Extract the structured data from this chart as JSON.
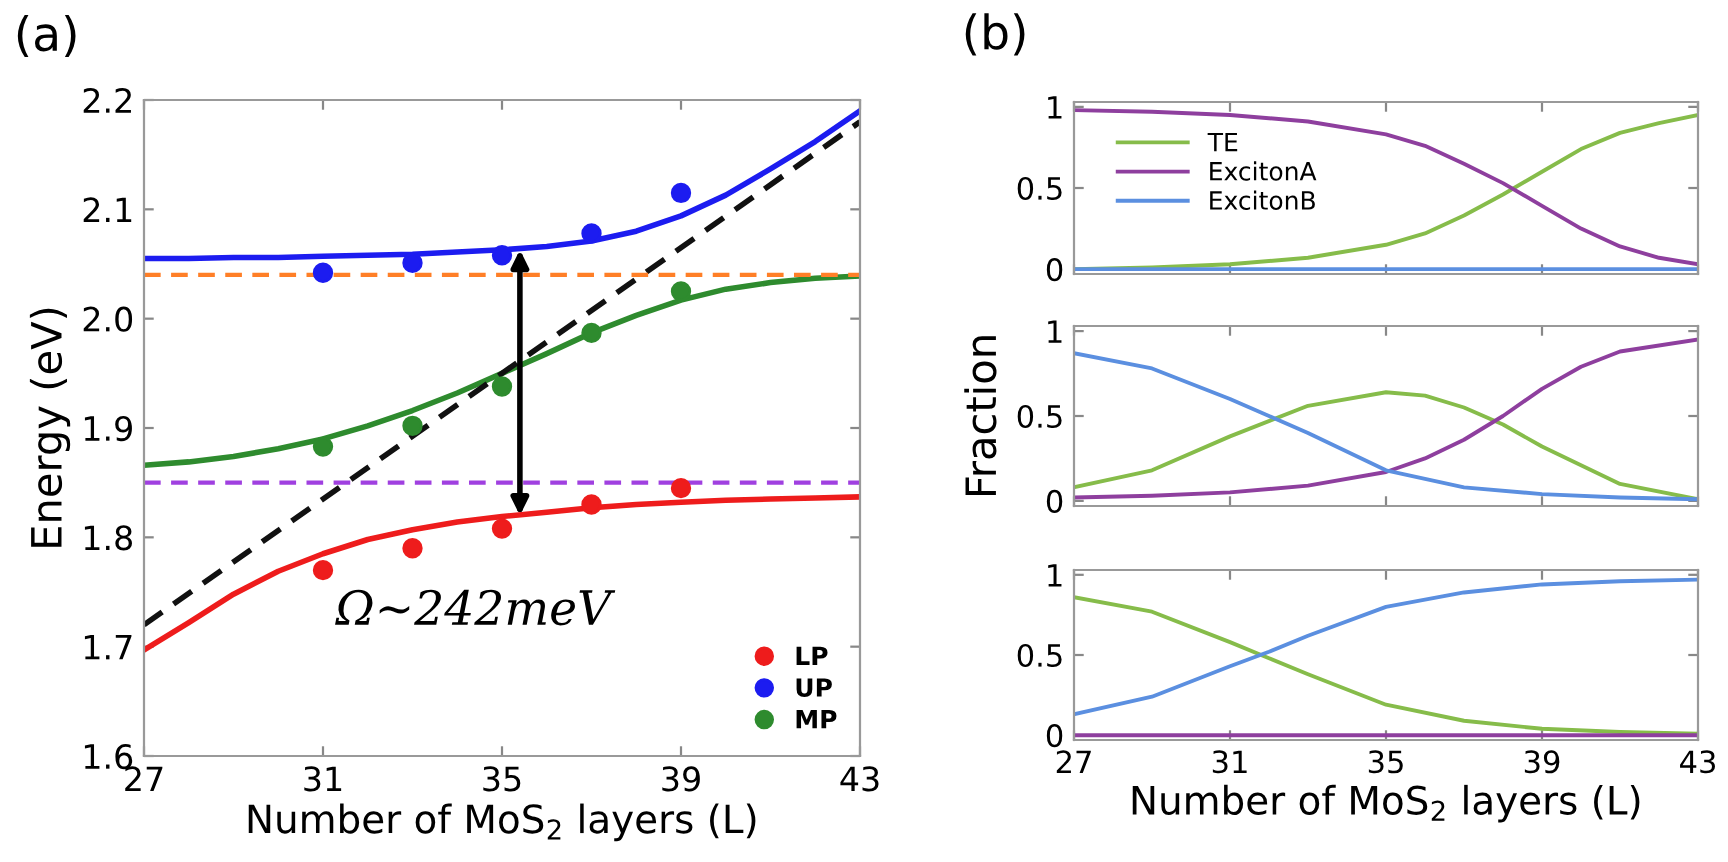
{
  "chart_data": [
    {
      "type": "line",
      "title": "(a)",
      "xlabel": "Number of MoS$_{2}$ layers (L)",
      "ylabel": "Energy (eV)",
      "xlim": [
        27,
        43
      ],
      "xticks": [
        27,
        31,
        35,
        39,
        43
      ],
      "ylim": [
        1.6,
        2.2
      ],
      "yticks": [
        {
          "value": 1.6,
          "label": "1.6"
        },
        {
          "value": 1.7,
          "label": "1.7"
        },
        {
          "value": 1.8,
          "label": "1.8"
        },
        {
          "value": 1.9,
          "label": "1.9"
        },
        {
          "value": 2.0,
          "label": "2.0"
        },
        {
          "value": 2.1,
          "label": "2.1"
        },
        {
          "value": 2.2,
          "label": "2.2"
        }
      ],
      "grid": false,
      "legend": "bottom right",
      "series": [
        {
          "type": "line",
          "color": "#1c1cf0",
          "x": [
            27,
            28,
            29,
            30,
            31,
            32,
            33,
            34,
            35,
            36,
            37,
            38,
            39,
            40,
            41,
            42,
            43
          ],
          "values": [
            2.055,
            2.055,
            2.056,
            2.056,
            2.057,
            2.058,
            2.059,
            2.061,
            2.063,
            2.066,
            2.071,
            2.08,
            2.094,
            2.113,
            2.137,
            2.162,
            2.19
          ]
        },
        {
          "type": "line",
          "color": "#2e8b2e",
          "x": [
            27,
            28,
            29,
            30,
            31,
            32,
            33,
            34,
            35,
            36,
            37,
            38,
            39,
            40,
            41,
            42,
            43
          ],
          "values": [
            1.866,
            1.869,
            1.874,
            1.881,
            1.89,
            1.902,
            1.916,
            1.932,
            1.95,
            1.968,
            1.987,
            2.003,
            2.017,
            2.027,
            2.033,
            2.037,
            2.039
          ]
        },
        {
          "type": "line",
          "color": "#ee1c1c",
          "x": [
            27,
            28,
            29,
            30,
            31,
            32,
            33,
            34,
            35,
            36,
            37,
            38,
            39,
            40,
            41,
            42,
            43
          ],
          "values": [
            1.697,
            1.722,
            1.748,
            1.769,
            1.785,
            1.798,
            1.807,
            1.814,
            1.819,
            1.823,
            1.827,
            1.83,
            1.832,
            1.834,
            1.835,
            1.836,
            1.837
          ]
        },
        {
          "type": "line",
          "color": "#111111",
          "line_style": "dashed",
          "x": [
            27,
            43
          ],
          "values": [
            1.72,
            2.18
          ]
        },
        {
          "type": "scatter",
          "name": "LP",
          "color": "#ee1c1c",
          "marker": "circle",
          "x": [
            31,
            33,
            35,
            37,
            39
          ],
          "values": [
            1.77,
            1.79,
            1.808,
            1.83,
            1.845
          ]
        },
        {
          "type": "scatter",
          "name": "UP",
          "color": "#1c1cf0",
          "marker": "circle",
          "x": [
            31,
            33,
            35,
            37,
            39
          ],
          "values": [
            2.042,
            2.051,
            2.058,
            2.078,
            2.115
          ]
        },
        {
          "type": "scatter",
          "name": "MP",
          "color": "#2e8b2e",
          "marker": "circle",
          "x": [
            31,
            33,
            35,
            37,
            39
          ],
          "values": [
            1.883,
            1.902,
            1.938,
            1.987,
            2.025
          ]
        }
      ],
      "ref_lines": [
        {
          "axis": "y",
          "value": 2.04,
          "color": "#ff7f27",
          "line_style": "dashed"
        },
        {
          "axis": "y",
          "value": 1.85,
          "color": "#a040e0",
          "line_style": "dashed"
        }
      ],
      "annotations": [
        "Ω~242meV"
      ]
    },
    {
      "type": "line",
      "title": "(b)",
      "xlim": [
        27,
        43
      ],
      "xticks": [
        27,
        31,
        35,
        39,
        43
      ],
      "ylim": [
        -0.03,
        1.03
      ],
      "yticks": [
        0,
        0.5,
        1
      ],
      "tick_labels": "y",
      "grid": false,
      "legend": "top left",
      "series": [
        {
          "name": "TE",
          "color": "#86bc4a",
          "x": [
            27,
            29,
            31,
            33,
            35,
            36,
            37,
            38,
            39,
            40,
            41,
            42,
            43
          ],
          "values": [
            0.0,
            0.01,
            0.03,
            0.07,
            0.15,
            0.22,
            0.33,
            0.46,
            0.6,
            0.74,
            0.84,
            0.9,
            0.95
          ]
        },
        {
          "name": "ExcitonA",
          "color": "#8e3f9e",
          "x": [
            27,
            29,
            31,
            33,
            35,
            36,
            37,
            38,
            39,
            40,
            41,
            42,
            43
          ],
          "values": [
            0.98,
            0.97,
            0.95,
            0.91,
            0.83,
            0.76,
            0.65,
            0.53,
            0.39,
            0.25,
            0.14,
            0.07,
            0.03
          ]
        },
        {
          "name": "ExcitonB",
          "color": "#5b8fe0",
          "x": [
            27,
            43
          ],
          "values": [
            0.0,
            0.0
          ]
        }
      ]
    },
    {
      "type": "line",
      "ylabel": "Fraction",
      "xlim": [
        27,
        43
      ],
      "xticks": [
        27,
        31,
        35,
        39,
        43
      ],
      "ylim": [
        -0.03,
        1.03
      ],
      "yticks": [
        0,
        0.5,
        1
      ],
      "tick_labels": "y",
      "grid": false,
      "series": [
        {
          "color": "#86bc4a",
          "x": [
            27,
            29,
            31,
            33,
            35,
            36,
            37,
            38,
            39,
            41,
            43
          ],
          "values": [
            0.08,
            0.18,
            0.38,
            0.56,
            0.64,
            0.62,
            0.55,
            0.45,
            0.32,
            0.1,
            0.01
          ]
        },
        {
          "color": "#8e3f9e",
          "x": [
            27,
            29,
            31,
            33,
            35,
            36,
            37,
            38,
            39,
            40,
            41,
            43
          ],
          "values": [
            0.02,
            0.03,
            0.05,
            0.09,
            0.17,
            0.25,
            0.36,
            0.5,
            0.66,
            0.79,
            0.88,
            0.95
          ]
        },
        {
          "color": "#5b8fe0",
          "x": [
            27,
            29,
            31,
            32,
            33,
            35,
            37,
            39,
            41,
            43
          ],
          "values": [
            0.87,
            0.78,
            0.6,
            0.5,
            0.4,
            0.18,
            0.08,
            0.04,
            0.02,
            0.01
          ]
        }
      ]
    },
    {
      "type": "line",
      "xlabel": "Number of MoS$_{2}$ layers (L)",
      "xlim": [
        27,
        43
      ],
      "xticks": [
        27,
        31,
        35,
        39,
        43
      ],
      "ylim": [
        -0.03,
        1.03
      ],
      "yticks": [
        0,
        0.5,
        1
      ],
      "grid": false,
      "series": [
        {
          "color": "#86bc4a",
          "x": [
            27,
            29,
            31,
            32,
            33,
            35,
            37,
            39,
            41,
            43
          ],
          "values": [
            0.86,
            0.77,
            0.58,
            0.48,
            0.38,
            0.19,
            0.09,
            0.04,
            0.02,
            0.01
          ]
        },
        {
          "color": "#8e3f9e",
          "x": [
            27,
            43
          ],
          "values": [
            0.0,
            0.0
          ]
        },
        {
          "color": "#5b8fe0",
          "x": [
            27,
            29,
            31,
            32,
            33,
            35,
            37,
            39,
            41,
            43
          ],
          "values": [
            0.13,
            0.24,
            0.43,
            0.52,
            0.62,
            0.8,
            0.89,
            0.94,
            0.96,
            0.97
          ]
        }
      ]
    }
  ]
}
